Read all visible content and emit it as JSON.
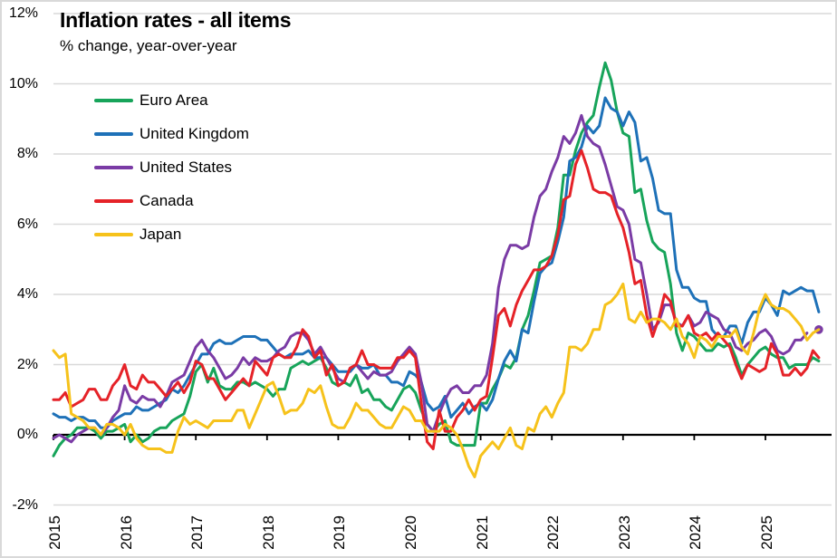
{
  "chart_data": {
    "type": "line",
    "title": "Inflation rates - all items",
    "subtitle": "% change, year-over-year",
    "x_start": "2015-01",
    "x_frequency": "monthly",
    "x_axis": {
      "tick_labels": [
        "2015",
        "2016",
        "2017",
        "2018",
        "2019",
        "2020",
        "2021",
        "2022",
        "2023",
        "2024",
        "2025"
      ]
    },
    "y_axis": {
      "tick_labels": [
        "12%",
        "10%",
        "8%",
        "6%",
        "4%",
        "2%",
        "0%",
        "-2%"
      ],
      "tick_values": [
        12,
        10,
        8,
        6,
        4,
        2,
        0,
        -2
      ],
      "ylim": [
        -2,
        12
      ],
      "format": "percent"
    },
    "grid": true,
    "legend_position": "top-left-inside",
    "style": {
      "background": "#FFFFFF",
      "frame_color": "#D9D9D9",
      "grid_color": "#D9D9D9",
      "zero_axis_color": "#000000",
      "text_color": "#000000"
    },
    "series": [
      {
        "name": "Euro Area",
        "color": "#17A45A",
        "values": [
          -0.6,
          -0.3,
          -0.1,
          0.0,
          0.2,
          0.2,
          0.2,
          0.1,
          -0.1,
          0.1,
          0.1,
          0.2,
          0.3,
          -0.2,
          0.0,
          -0.2,
          -0.1,
          0.1,
          0.2,
          0.2,
          0.4,
          0.5,
          0.6,
          1.1,
          1.8,
          2.0,
          1.5,
          1.9,
          1.4,
          1.3,
          1.3,
          1.5,
          1.5,
          1.4,
          1.5,
          1.4,
          1.3,
          1.1,
          1.3,
          1.3,
          1.9,
          2.0,
          2.1,
          2.0,
          2.1,
          2.2,
          1.9,
          1.5,
          1.4,
          1.5,
          1.4,
          1.7,
          1.2,
          1.3,
          1.0,
          1.0,
          0.8,
          0.7,
          1.0,
          1.3,
          1.4,
          1.2,
          0.7,
          0.3,
          0.1,
          0.3,
          0.4,
          -0.2,
          -0.3,
          -0.3,
          -0.3,
          -0.3,
          0.9,
          0.9,
          1.3,
          1.6,
          2.0,
          1.9,
          2.2,
          3.0,
          3.4,
          4.1,
          4.9,
          5.0,
          5.1,
          5.9,
          7.4,
          7.4,
          8.1,
          8.6,
          8.9,
          9.1,
          9.9,
          10.6,
          10.1,
          9.2,
          8.6,
          8.5,
          6.9,
          7.0,
          6.1,
          5.5,
          5.3,
          5.2,
          4.3,
          2.9,
          2.4,
          2.9,
          2.8,
          2.6,
          2.4,
          2.4,
          2.6,
          2.5,
          2.6,
          2.2,
          1.7,
          2.0,
          2.2,
          2.4,
          2.5,
          2.3,
          2.2,
          2.2,
          1.9,
          2.0,
          2.0,
          2.0,
          2.2,
          2.1
        ]
      },
      {
        "name": "United Kingdom",
        "color": "#1E71B8",
        "values": [
          0.6,
          0.5,
          0.5,
          0.4,
          0.5,
          0.5,
          0.4,
          0.4,
          0.2,
          0.2,
          0.4,
          0.5,
          0.6,
          0.6,
          0.8,
          0.7,
          0.7,
          0.8,
          0.9,
          1.0,
          1.3,
          1.2,
          1.4,
          1.7,
          2.0,
          2.3,
          2.3,
          2.6,
          2.7,
          2.6,
          2.6,
          2.7,
          2.8,
          2.8,
          2.8,
          2.7,
          2.7,
          2.5,
          2.3,
          2.2,
          2.3,
          2.3,
          2.3,
          2.4,
          2.2,
          2.2,
          2.2,
          2.0,
          1.8,
          1.8,
          1.8,
          2.0,
          1.9,
          1.9,
          2.0,
          1.7,
          1.7,
          1.5,
          1.5,
          1.4,
          1.8,
          1.7,
          1.5,
          0.9,
          0.7,
          0.8,
          1.1,
          0.5,
          0.7,
          0.9,
          0.6,
          0.8,
          0.9,
          0.7,
          1.0,
          1.6,
          2.1,
          2.4,
          2.1,
          3.0,
          2.9,
          3.8,
          4.6,
          4.8,
          4.9,
          5.5,
          6.2,
          7.8,
          7.9,
          8.2,
          8.8,
          8.6,
          8.8,
          9.6,
          9.3,
          9.2,
          8.8,
          9.2,
          8.9,
          7.8,
          7.9,
          7.3,
          6.4,
          6.3,
          6.3,
          4.7,
          4.2,
          4.2,
          3.9,
          3.8,
          3.8,
          3.0,
          2.8,
          2.8,
          3.1,
          3.1,
          2.6,
          3.2,
          3.5,
          3.5,
          3.9,
          3.7,
          3.4,
          4.1,
          4.0,
          4.1,
          4.2,
          4.1,
          4.1,
          3.5
        ]
      },
      {
        "name": "United States",
        "color": "#7A3BA5",
        "latest_point_style": "detached-dot",
        "values": [
          -0.1,
          0.0,
          -0.1,
          -0.2,
          0.0,
          0.1,
          0.2,
          0.2,
          0.0,
          0.2,
          0.5,
          0.7,
          1.4,
          1.0,
          0.9,
          1.1,
          1.0,
          1.0,
          0.8,
          1.1,
          1.5,
          1.6,
          1.7,
          2.1,
          2.5,
          2.7,
          2.4,
          2.2,
          1.9,
          1.6,
          1.7,
          1.9,
          2.2,
          2.0,
          2.2,
          2.1,
          2.1,
          2.2,
          2.4,
          2.5,
          2.8,
          2.9,
          2.9,
          2.7,
          2.3,
          2.5,
          2.2,
          1.9,
          1.6,
          1.5,
          1.9,
          2.0,
          1.8,
          1.6,
          1.8,
          1.7,
          1.7,
          1.8,
          2.1,
          2.3,
          2.5,
          2.3,
          1.5,
          0.3,
          0.1,
          0.6,
          1.0,
          1.3,
          1.4,
          1.2,
          1.2,
          1.4,
          1.4,
          1.7,
          2.6,
          4.2,
          5.0,
          5.4,
          5.4,
          5.3,
          5.4,
          6.2,
          6.8,
          7.0,
          7.5,
          7.9,
          8.5,
          8.3,
          8.6,
          9.1,
          8.5,
          8.3,
          8.2,
          7.7,
          7.1,
          6.5,
          6.4,
          6.0,
          5.0,
          4.9,
          4.0,
          3.0,
          3.2,
          3.7,
          3.7,
          3.2,
          3.1,
          3.4,
          3.1,
          3.2,
          3.5,
          3.4,
          3.3,
          3.0,
          2.9,
          2.5,
          2.4,
          2.6,
          2.7,
          2.9,
          3.0,
          2.8,
          2.4,
          2.3,
          2.4,
          2.7,
          2.7,
          2.9,
          null,
          3.0
        ]
      },
      {
        "name": "Canada",
        "color": "#E52228",
        "values": [
          1.0,
          1.0,
          1.2,
          0.8,
          0.9,
          1.0,
          1.3,
          1.3,
          1.0,
          1.0,
          1.4,
          1.6,
          2.0,
          1.4,
          1.3,
          1.7,
          1.5,
          1.5,
          1.3,
          1.1,
          1.3,
          1.5,
          1.2,
          1.5,
          2.1,
          2.0,
          1.6,
          1.6,
          1.3,
          1.0,
          1.2,
          1.4,
          1.6,
          1.4,
          2.1,
          1.9,
          1.7,
          2.2,
          2.3,
          2.2,
          2.2,
          2.5,
          3.0,
          2.8,
          2.2,
          2.4,
          1.7,
          2.0,
          1.4,
          1.5,
          1.9,
          2.0,
          2.4,
          2.0,
          2.0,
          1.9,
          1.9,
          1.9,
          2.2,
          2.2,
          2.4,
          2.2,
          0.9,
          -0.2,
          -0.4,
          0.7,
          0.1,
          0.1,
          0.5,
          0.7,
          1.0,
          0.7,
          1.0,
          1.1,
          2.2,
          3.4,
          3.6,
          3.1,
          3.7,
          4.1,
          4.4,
          4.7,
          4.7,
          4.8,
          5.1,
          5.7,
          6.7,
          6.8,
          7.7,
          8.1,
          7.6,
          7.0,
          6.9,
          6.9,
          6.8,
          6.3,
          5.9,
          5.2,
          4.3,
          4.4,
          3.4,
          2.8,
          3.3,
          4.0,
          3.8,
          3.1,
          3.1,
          3.4,
          2.9,
          2.8,
          2.9,
          2.7,
          2.9,
          2.7,
          2.5,
          2.0,
          1.6,
          2.0,
          1.9,
          1.8,
          1.9,
          2.6,
          2.3,
          1.7,
          1.7,
          1.9,
          1.7,
          1.9,
          2.4,
          2.2
        ]
      },
      {
        "name": "Japan",
        "color": "#F6C21B",
        "values": [
          2.4,
          2.2,
          2.3,
          0.6,
          0.5,
          0.4,
          0.2,
          0.2,
          0.0,
          0.3,
          0.3,
          0.2,
          0.0,
          0.3,
          -0.1,
          -0.3,
          -0.4,
          -0.4,
          -0.4,
          -0.5,
          -0.5,
          0.1,
          0.5,
          0.3,
          0.4,
          0.3,
          0.2,
          0.4,
          0.4,
          0.4,
          0.4,
          0.7,
          0.7,
          0.2,
          0.6,
          1.0,
          1.4,
          1.5,
          1.1,
          0.6,
          0.7,
          0.7,
          0.9,
          1.3,
          1.2,
          1.4,
          0.8,
          0.3,
          0.2,
          0.2,
          0.5,
          0.9,
          0.7,
          0.7,
          0.5,
          0.3,
          0.2,
          0.2,
          0.5,
          0.8,
          0.7,
          0.4,
          0.4,
          0.1,
          0.1,
          0.1,
          0.3,
          0.2,
          0.0,
          -0.4,
          -0.9,
          -1.2,
          -0.6,
          -0.4,
          -0.2,
          -0.4,
          -0.1,
          0.2,
          -0.3,
          -0.4,
          0.2,
          0.1,
          0.6,
          0.8,
          0.5,
          0.9,
          1.2,
          2.5,
          2.5,
          2.4,
          2.6,
          3.0,
          3.0,
          3.7,
          3.8,
          4.0,
          4.3,
          3.3,
          3.2,
          3.5,
          3.2,
          3.3,
          3.3,
          3.2,
          3.0,
          3.3,
          2.8,
          2.6,
          2.2,
          2.8,
          2.7,
          2.5,
          2.8,
          2.8,
          2.8,
          3.0,
          2.5,
          2.3,
          2.9,
          3.6,
          4.0,
          3.7,
          3.6,
          3.6,
          3.5,
          3.3,
          3.1,
          2.7,
          2.9,
          3.0
        ]
      }
    ]
  }
}
